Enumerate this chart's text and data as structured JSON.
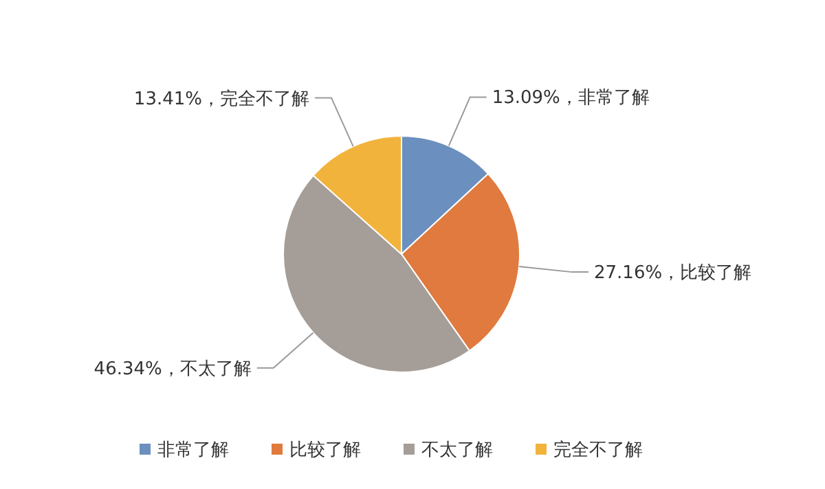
{
  "chart_data": {
    "type": "pie",
    "categories": [
      "非常了解",
      "比较了解",
      "不太了解",
      "完全不了解"
    ],
    "values": [
      13.09,
      27.16,
      46.34,
      13.41
    ],
    "colors": [
      "#6b8fbf",
      "#e07a3e",
      "#a59d97",
      "#f2b33d"
    ],
    "value_labels": [
      "13.09%，非常了解",
      "27.16%，比较了解",
      "46.34%，不太了解",
      "13.41%，完全不了解"
    ],
    "legend": "bottom"
  }
}
